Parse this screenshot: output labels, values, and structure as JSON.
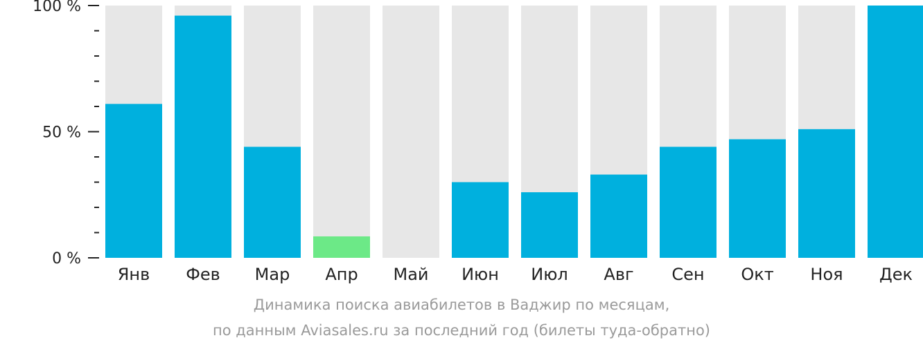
{
  "chart_data": {
    "type": "bar",
    "categories": [
      "Янв",
      "Фев",
      "Мар",
      "Апр",
      "Май",
      "Июн",
      "Июл",
      "Авг",
      "Сен",
      "Окт",
      "Ноя",
      "Дек"
    ],
    "values": [
      61,
      96,
      44,
      8.5,
      0,
      30,
      26,
      33,
      44,
      47,
      51,
      100
    ],
    "highlight_index": 3,
    "ylim": [
      0,
      100
    ],
    "y_tick_labels": [
      {
        "value": 0,
        "label": "0 %"
      },
      {
        "value": 50,
        "label": "50 %"
      },
      {
        "value": 100,
        "label": "100 %"
      }
    ],
    "minor_tick_step": 10,
    "colors": {
      "bar": "#00b0de",
      "highlight": "#6ce987",
      "track": "#e7e7e7",
      "axis": "#222222"
    },
    "caption": [
      "Динамика поиска авиабилетов в Ваджир по месяцам,",
      "по данным Aviasales.ru за последний год (билеты туда-обратно)"
    ]
  }
}
